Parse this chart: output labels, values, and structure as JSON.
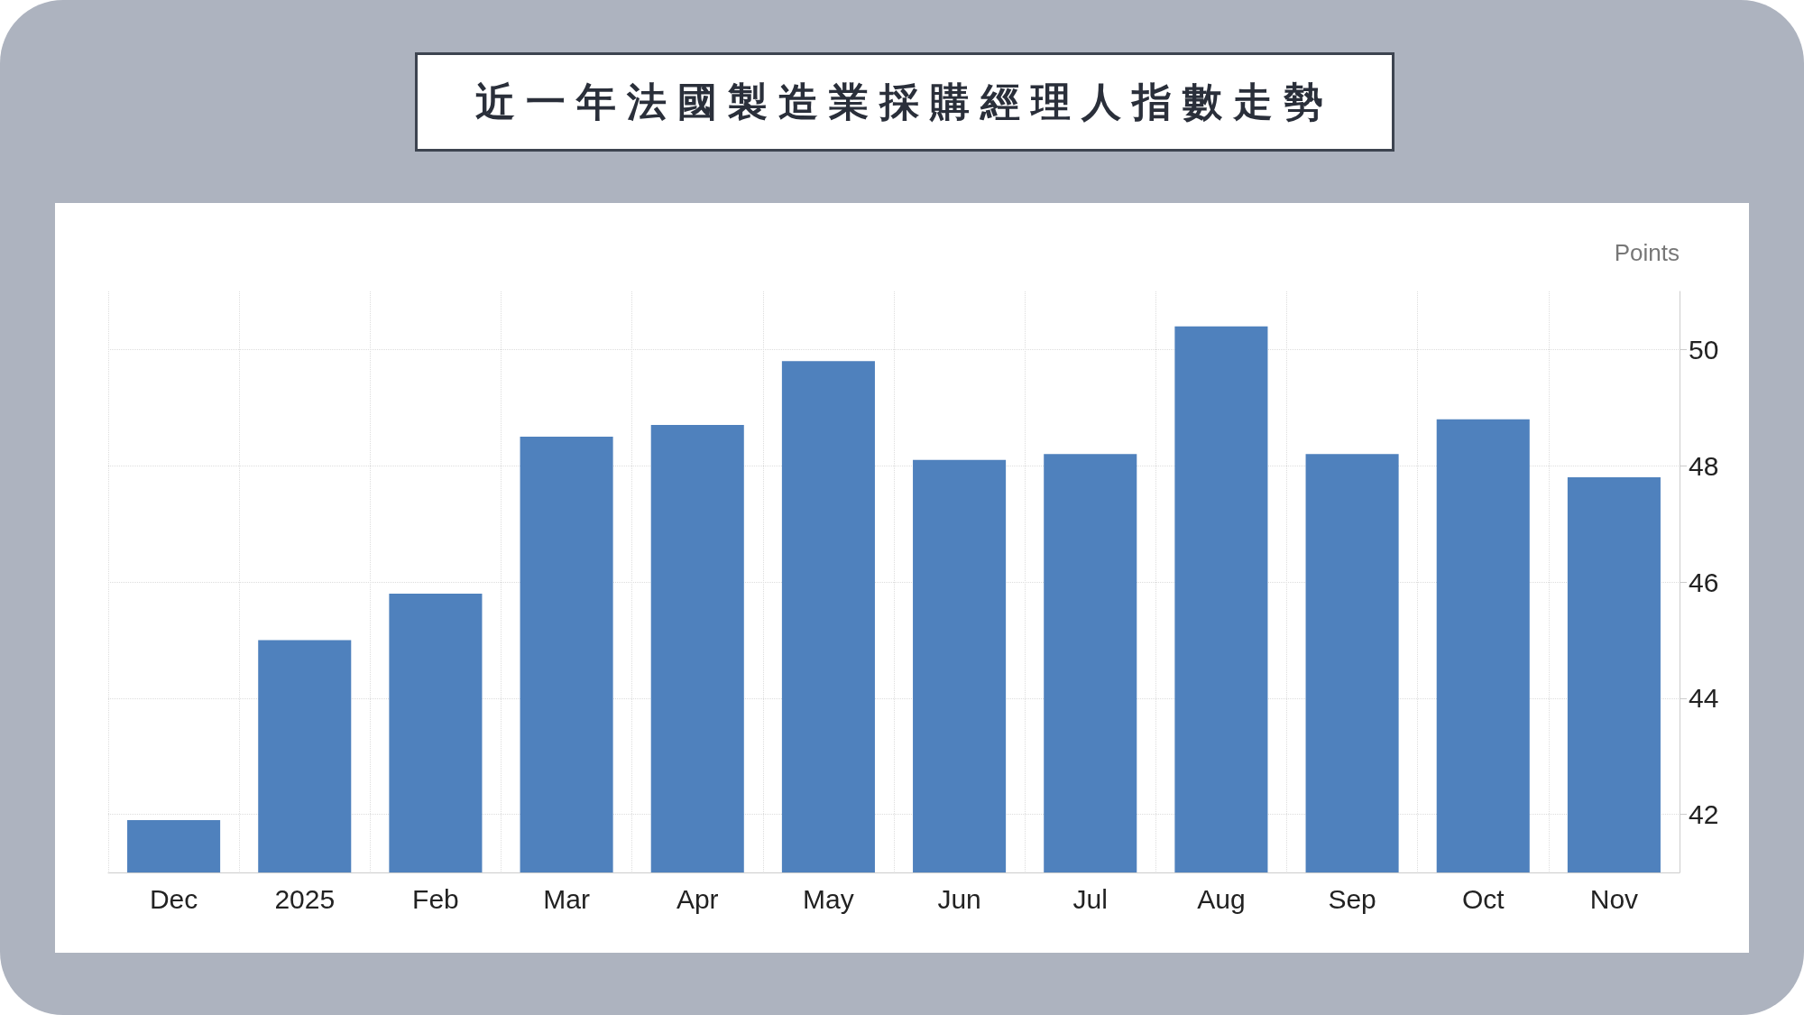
{
  "chart_data": {
    "type": "bar",
    "title": "近一年法國製造業採購經理人指數走勢",
    "ylabel": "Points",
    "categories": [
      "Dec",
      "2025",
      "Feb",
      "Mar",
      "Apr",
      "May",
      "Jun",
      "Jul",
      "Aug",
      "Sep",
      "Oct",
      "Nov"
    ],
    "values": [
      41.9,
      45.0,
      45.8,
      48.5,
      48.7,
      49.8,
      48.1,
      48.2,
      50.4,
      48.2,
      48.8,
      47.8
    ],
    "color": "#4f81bd",
    "ylim": [
      41,
      51
    ],
    "yticks": [
      42,
      44,
      46,
      48,
      50
    ],
    "grid": true
  }
}
